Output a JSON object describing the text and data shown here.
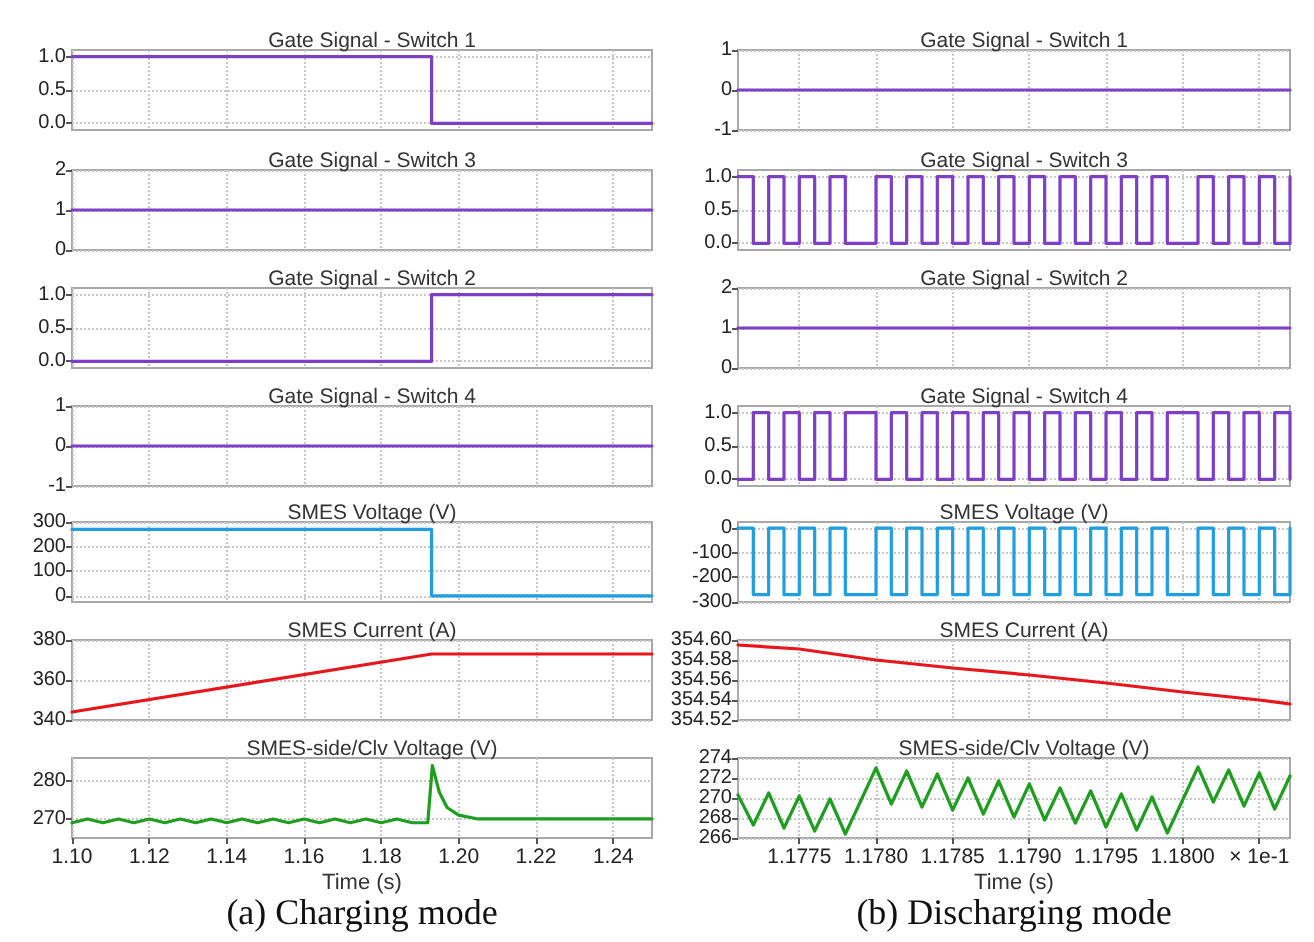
{
  "chart_data": [
    {
      "type": "step",
      "title": "Gate Signal - Switch 1",
      "x": [
        1.1,
        1.193,
        1.25
      ],
      "series": [
        {
          "color": "#7e3fc6",
          "values": [
            1,
            0,
            0
          ]
        }
      ],
      "xlim": [
        1.1,
        1.25
      ],
      "xticks": [
        1.1,
        1.12,
        1.14,
        1.16,
        1.18,
        1.2,
        1.22,
        1.24
      ],
      "ylim": [
        -0.1,
        1.1
      ],
      "yticks": [
        {
          "value": 0,
          "label": "0.0"
        },
        {
          "value": 0.5,
          "label": "0.5"
        },
        {
          "value": 1,
          "label": "1.0"
        }
      ],
      "grid": true,
      "tick_labels": "y"
    },
    {
      "type": "line",
      "title": "Gate Signal - Switch 3",
      "x": [
        1.1,
        1.25
      ],
      "series": [
        {
          "color": "#7e3fc6",
          "values": [
            1,
            1
          ]
        }
      ],
      "xlim": [
        1.1,
        1.25
      ],
      "xticks": [
        1.1,
        1.12,
        1.14,
        1.16,
        1.18,
        1.2,
        1.22,
        1.24
      ],
      "ylim": [
        0,
        2
      ],
      "yticks": [
        0,
        1,
        2
      ],
      "grid": true,
      "tick_labels": "y"
    },
    {
      "type": "step",
      "title": "Gate Signal - Switch 2",
      "x": [
        1.1,
        1.193,
        1.25
      ],
      "series": [
        {
          "color": "#7e3fc6",
          "values": [
            0,
            1,
            1
          ]
        }
      ],
      "xlim": [
        1.1,
        1.25
      ],
      "xticks": [
        1.1,
        1.12,
        1.14,
        1.16,
        1.18,
        1.2,
        1.22,
        1.24
      ],
      "ylim": [
        -0.1,
        1.1
      ],
      "yticks": [
        {
          "value": 0,
          "label": "0.0"
        },
        {
          "value": 0.5,
          "label": "0.5"
        },
        {
          "value": 1,
          "label": "1.0"
        }
      ],
      "grid": true,
      "tick_labels": "y"
    },
    {
      "type": "line",
      "title": "Gate Signal - Switch 4",
      "x": [
        1.1,
        1.25
      ],
      "series": [
        {
          "color": "#7e3fc6",
          "values": [
            0,
            0
          ]
        }
      ],
      "xlim": [
        1.1,
        1.25
      ],
      "xticks": [
        1.1,
        1.12,
        1.14,
        1.16,
        1.18,
        1.2,
        1.22,
        1.24
      ],
      "ylim": [
        -1,
        1
      ],
      "yticks": [
        -1,
        0,
        1
      ],
      "grid": true,
      "tick_labels": "y"
    },
    {
      "type": "step",
      "title": "SMES Voltage (V)",
      "x": [
        1.1,
        1.193,
        1.25
      ],
      "series": [
        {
          "color": "#1f9fe0",
          "values": [
            270,
            0,
            0
          ]
        }
      ],
      "xlim": [
        1.1,
        1.25
      ],
      "xticks": [
        1.1,
        1.12,
        1.14,
        1.16,
        1.18,
        1.2,
        1.22,
        1.24
      ],
      "ylim": [
        -25,
        300
      ],
      "yticks": [
        0,
        100,
        200,
        300
      ],
      "grid": true,
      "tick_labels": "y"
    },
    {
      "type": "line",
      "title": "SMES Current (A)",
      "x": [
        1.1,
        1.193,
        1.25
      ],
      "series": [
        {
          "color": "#e8161b",
          "values": [
            344,
            373,
            373
          ]
        }
      ],
      "xlim": [
        1.1,
        1.25
      ],
      "xticks": [
        1.1,
        1.12,
        1.14,
        1.16,
        1.18,
        1.2,
        1.22,
        1.24
      ],
      "ylim": [
        340,
        380
      ],
      "yticks": [
        340,
        360,
        380
      ],
      "grid": true,
      "tick_labels": "y"
    },
    {
      "type": "line",
      "title": "SMES-side/Clv Voltage (V)",
      "xlabel": "Time (s)",
      "annotations": [
        "(a) Charging mode"
      ],
      "x": [
        1.1,
        1.104,
        1.108,
        1.112,
        1.116,
        1.12,
        1.124,
        1.128,
        1.132,
        1.136,
        1.14,
        1.144,
        1.148,
        1.152,
        1.156,
        1.16,
        1.164,
        1.168,
        1.172,
        1.176,
        1.18,
        1.184,
        1.188,
        1.192,
        1.1932,
        1.195,
        1.197,
        1.2,
        1.205,
        1.25
      ],
      "series": [
        {
          "color": "#1e9e1e",
          "values": [
            269,
            270,
            269,
            270,
            269,
            270,
            269,
            270,
            269,
            270,
            269,
            270,
            269,
            270,
            269,
            270,
            269,
            270,
            269,
            270,
            269,
            270,
            269,
            269,
            284,
            277,
            273,
            271,
            270,
            270
          ]
        }
      ],
      "xlim": [
        1.1,
        1.25
      ],
      "xticks": [
        {
          "value": 1.1,
          "label": "1.10"
        },
        {
          "value": 1.12,
          "label": "1.12"
        },
        {
          "value": 1.14,
          "label": "1.14"
        },
        {
          "value": 1.16,
          "label": "1.16"
        },
        {
          "value": 1.18,
          "label": "1.18"
        },
        {
          "value": 1.2,
          "label": "1.20"
        },
        {
          "value": 1.22,
          "label": "1.22"
        },
        {
          "value": 1.24,
          "label": "1.24"
        }
      ],
      "ylim": [
        265,
        286
      ],
      "yticks": [
        270,
        280
      ],
      "grid": true
    },
    {
      "type": "line",
      "title": "Gate Signal - Switch 1",
      "x": [
        1.1771,
        1.1807
      ],
      "series": [
        {
          "color": "#7e3fc6",
          "values": [
            0,
            0
          ]
        }
      ],
      "xlim": [
        1.1771,
        1.1807
      ],
      "xticks": [
        1.1775,
        1.178,
        1.1785,
        1.179,
        1.1795,
        1.18,
        1.1805
      ],
      "ylim": [
        -1,
        1
      ],
      "yticks": [
        -1,
        0,
        1
      ],
      "grid": true,
      "tick_labels": "y"
    },
    {
      "type": "step",
      "title": "Gate Signal - Switch 3",
      "x": [
        1.1771,
        1.1772,
        1.1773,
        1.1774,
        1.1775,
        1.1776,
        1.1777,
        1.1778,
        1.178,
        1.1781,
        1.1782,
        1.1783,
        1.1784,
        1.1785,
        1.1786,
        1.1787,
        1.1788,
        1.1789,
        1.179,
        1.1791,
        1.1792,
        1.1793,
        1.1794,
        1.1795,
        1.1796,
        1.1797,
        1.1798,
        1.1799,
        1.1801,
        1.1802,
        1.1803,
        1.1804,
        1.1805,
        1.1806,
        1.1807
      ],
      "series": [
        {
          "color": "#7e3fc6",
          "values": [
            1,
            0,
            1,
            0,
            1,
            0,
            1,
            0,
            1,
            0,
            1,
            0,
            1,
            0,
            1,
            0,
            1,
            0,
            1,
            0,
            1,
            0,
            1,
            0,
            1,
            0,
            1,
            0,
            1,
            0,
            1,
            0,
            1,
            0,
            1
          ]
        }
      ],
      "xlim": [
        1.1771,
        1.1807
      ],
      "xticks": [
        1.1775,
        1.178,
        1.1785,
        1.179,
        1.1795,
        1.18,
        1.1805
      ],
      "ylim": [
        -0.1,
        1.1
      ],
      "yticks": [
        {
          "value": 0,
          "label": "0.0"
        },
        {
          "value": 0.5,
          "label": "0.5"
        },
        {
          "value": 1,
          "label": "1.0"
        }
      ],
      "grid": true,
      "tick_labels": "y"
    },
    {
      "type": "line",
      "title": "Gate Signal - Switch 2",
      "x": [
        1.1771,
        1.1807
      ],
      "series": [
        {
          "color": "#7e3fc6",
          "values": [
            1,
            1
          ]
        }
      ],
      "xlim": [
        1.1771,
        1.1807
      ],
      "xticks": [
        1.1775,
        1.178,
        1.1785,
        1.179,
        1.1795,
        1.18,
        1.1805
      ],
      "ylim": [
        0,
        2
      ],
      "yticks": [
        0,
        1,
        2
      ],
      "grid": true,
      "tick_labels": "y"
    },
    {
      "type": "step",
      "title": "Gate Signal - Switch 4",
      "x": [
        1.1771,
        1.1772,
        1.1773,
        1.1774,
        1.1775,
        1.1776,
        1.1777,
        1.1778,
        1.178,
        1.1781,
        1.1782,
        1.1783,
        1.1784,
        1.1785,
        1.1786,
        1.1787,
        1.1788,
        1.1789,
        1.179,
        1.1791,
        1.1792,
        1.1793,
        1.1794,
        1.1795,
        1.1796,
        1.1797,
        1.1798,
        1.1799,
        1.1801,
        1.1802,
        1.1803,
        1.1804,
        1.1805,
        1.1806,
        1.1807
      ],
      "series": [
        {
          "color": "#7e3fc6",
          "values": [
            0,
            1,
            0,
            1,
            0,
            1,
            0,
            1,
            0,
            1,
            0,
            1,
            0,
            1,
            0,
            1,
            0,
            1,
            0,
            1,
            0,
            1,
            0,
            1,
            0,
            1,
            0,
            1,
            0,
            1,
            0,
            1,
            0,
            1,
            0
          ]
        }
      ],
      "xlim": [
        1.1771,
        1.1807
      ],
      "xticks": [
        1.1775,
        1.178,
        1.1785,
        1.179,
        1.1795,
        1.18,
        1.1805
      ],
      "ylim": [
        -0.1,
        1.1
      ],
      "yticks": [
        {
          "value": 0,
          "label": "0.0"
        },
        {
          "value": 0.5,
          "label": "0.5"
        },
        {
          "value": 1,
          "label": "1.0"
        }
      ],
      "grid": true,
      "tick_labels": "y"
    },
    {
      "type": "step",
      "title": "SMES Voltage (V)",
      "x": [
        1.1771,
        1.1772,
        1.1773,
        1.1774,
        1.1775,
        1.1776,
        1.1777,
        1.1778,
        1.178,
        1.1781,
        1.1782,
        1.1783,
        1.1784,
        1.1785,
        1.1786,
        1.1787,
        1.1788,
        1.1789,
        1.179,
        1.1791,
        1.1792,
        1.1793,
        1.1794,
        1.1795,
        1.1796,
        1.1797,
        1.1798,
        1.1799,
        1.1801,
        1.1802,
        1.1803,
        1.1804,
        1.1805,
        1.1806,
        1.1807
      ],
      "series": [
        {
          "color": "#1f9fe0",
          "values": [
            0,
            -270,
            0,
            -270,
            0,
            -270,
            0,
            -270,
            0,
            -270,
            0,
            -270,
            0,
            -270,
            0,
            -270,
            0,
            -270,
            0,
            -270,
            0,
            -270,
            0,
            -270,
            0,
            -270,
            0,
            -270,
            0,
            -270,
            0,
            -270,
            0,
            -270,
            0
          ]
        }
      ],
      "xlim": [
        1.1771,
        1.1807
      ],
      "xticks": [
        1.1775,
        1.178,
        1.1785,
        1.179,
        1.1795,
        1.18,
        1.1805
      ],
      "ylim": [
        -300,
        25
      ],
      "yticks": [
        -300,
        -200,
        -100,
        0
      ],
      "grid": true,
      "tick_labels": "y"
    },
    {
      "type": "line",
      "title": "SMES Current (A)",
      "x": [
        1.1771,
        1.1775,
        1.178,
        1.1785,
        1.179,
        1.1795,
        1.18,
        1.1805,
        1.1807
      ],
      "series": [
        {
          "color": "#e8161b",
          "values": [
            354.595,
            354.591,
            354.58,
            354.572,
            354.565,
            354.557,
            354.548,
            354.54,
            354.536
          ]
        }
      ],
      "xlim": [
        1.1771,
        1.1807
      ],
      "xticks": [
        1.1775,
        1.178,
        1.1785,
        1.179,
        1.1795,
        1.18,
        1.1805
      ],
      "ylim": [
        354.52,
        354.6
      ],
      "yticks": [
        {
          "value": 354.52,
          "label": "354.52"
        },
        {
          "value": 354.54,
          "label": "354.54"
        },
        {
          "value": 354.56,
          "label": "354.56"
        },
        {
          "value": 354.58,
          "label": "354.58"
        },
        {
          "value": 354.6,
          "label": "354.60"
        }
      ],
      "grid": true,
      "tick_labels": "y"
    },
    {
      "type": "line",
      "title": "SMES-side/Clv Voltage (V)",
      "xlabel": "Time (s)",
      "annotations": [
        "(b) Discharging mode"
      ],
      "x": [
        1.1771,
        1.1772,
        1.1773,
        1.1774,
        1.1775,
        1.1776,
        1.1777,
        1.1778,
        1.178,
        1.1781,
        1.1782,
        1.1783,
        1.1784,
        1.1785,
        1.1786,
        1.1787,
        1.1788,
        1.1789,
        1.179,
        1.1791,
        1.1792,
        1.1793,
        1.1794,
        1.1795,
        1.1796,
        1.1797,
        1.1798,
        1.1799,
        1.1801,
        1.1802,
        1.1803,
        1.1804,
        1.1805,
        1.1806,
        1.1807
      ],
      "series": [
        {
          "color": "#1e9e1e",
          "values": [
            270.3,
            267.3,
            270.5,
            267,
            270.2,
            266.7,
            269.9,
            266.4,
            273,
            269.4,
            272.7,
            269.1,
            272.4,
            268.8,
            272,
            268.4,
            271.7,
            268.1,
            271.4,
            267.8,
            271,
            267.5,
            270.7,
            267.1,
            270.4,
            266.8,
            270.1,
            266.5,
            273.1,
            269.6,
            272.8,
            269.2,
            272.5,
            268.9,
            272.2
          ]
        }
      ],
      "xlim": [
        1.1771,
        1.1807
      ],
      "xticks": [
        {
          "value": 1.1775,
          "label": "1.1775"
        },
        {
          "value": 1.178,
          "label": "1.1780"
        },
        {
          "value": 1.1785,
          "label": "1.1785"
        },
        {
          "value": 1.179,
          "label": "1.1790"
        },
        {
          "value": 1.1795,
          "label": "1.1795"
        },
        {
          "value": 1.18,
          "label": "1.1800"
        },
        {
          "value": 1.1805,
          "label": "× 1e-1"
        }
      ],
      "ylim": [
        266,
        274
      ],
      "yticks": [
        266,
        268,
        270,
        272,
        274
      ],
      "grid": true
    }
  ]
}
